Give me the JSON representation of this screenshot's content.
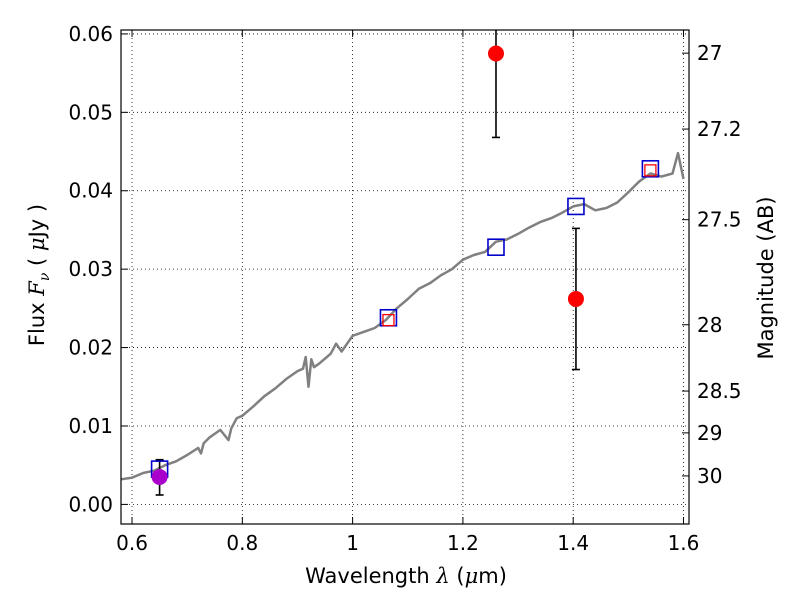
{
  "chart_data": {
    "type": "scatter",
    "xlabel": {
      "prefix": "Wavelength",
      "symbol": "λ",
      "unit_open": "(",
      "unit_mu": "μ",
      "unit_rest": "m)"
    },
    "ylabel": {
      "prefix": "Flux",
      "symbol": "F",
      "subscript": "ν",
      "unit_open": "(",
      "unit_mu": "μ",
      "unit_rest": "Jy",
      "unit_close": ")"
    },
    "y2label": "Magnitude (AB)",
    "xlim": [
      0.58,
      1.61
    ],
    "ylim": [
      -0.0025,
      0.0605
    ],
    "grid": true,
    "x_ticks": [
      {
        "value": 0.6,
        "label": "0.6"
      },
      {
        "value": 0.8,
        "label": "0.8"
      },
      {
        "value": 1.0,
        "label": "1"
      },
      {
        "value": 1.2,
        "label": "1.2"
      },
      {
        "value": 1.4,
        "label": "1.4"
      },
      {
        "value": 1.6,
        "label": "1.6"
      }
    ],
    "y_ticks": [
      {
        "value": 0.0,
        "label": "0.00"
      },
      {
        "value": 0.01,
        "label": "0.01"
      },
      {
        "value": 0.02,
        "label": "0.02"
      },
      {
        "value": 0.03,
        "label": "0.03"
      },
      {
        "value": 0.04,
        "label": "0.04"
      },
      {
        "value": 0.05,
        "label": "0.05"
      },
      {
        "value": 0.06,
        "label": "0.06"
      }
    ],
    "y2_ticks": [
      {
        "value": 27.0,
        "label": "27"
      },
      {
        "value": 27.2,
        "label": "27.2"
      },
      {
        "value": 27.5,
        "label": "27.5"
      },
      {
        "value": 28.0,
        "label": "28"
      },
      {
        "value": 28.5,
        "label": "28.5"
      },
      {
        "value": 29.0,
        "label": "29"
      },
      {
        "value": 30.0,
        "label": "30"
      }
    ],
    "model_spectrum": {
      "color": "#808080",
      "x": [
        0.58,
        0.6,
        0.62,
        0.64,
        0.66,
        0.68,
        0.7,
        0.72,
        0.725,
        0.73,
        0.74,
        0.76,
        0.775,
        0.78,
        0.79,
        0.8,
        0.82,
        0.84,
        0.86,
        0.88,
        0.9,
        0.91,
        0.915,
        0.92,
        0.925,
        0.93,
        0.94,
        0.96,
        0.97,
        0.98,
        1.0,
        1.02,
        1.04,
        1.06,
        1.08,
        1.1,
        1.12,
        1.14,
        1.16,
        1.18,
        1.2,
        1.22,
        1.24,
        1.26,
        1.28,
        1.3,
        1.32,
        1.34,
        1.36,
        1.38,
        1.4,
        1.42,
        1.44,
        1.46,
        1.48,
        1.5,
        1.52,
        1.54,
        1.56,
        1.58,
        1.59,
        1.6
      ],
      "y": [
        0.0032,
        0.0034,
        0.004,
        0.0043,
        0.005,
        0.0055,
        0.0063,
        0.0072,
        0.0065,
        0.0078,
        0.0085,
        0.0095,
        0.0082,
        0.0097,
        0.011,
        0.0113,
        0.0125,
        0.0138,
        0.0148,
        0.016,
        0.017,
        0.0173,
        0.0188,
        0.015,
        0.0185,
        0.0175,
        0.018,
        0.0192,
        0.0205,
        0.0195,
        0.0215,
        0.022,
        0.0225,
        0.0235,
        0.025,
        0.0262,
        0.0275,
        0.0282,
        0.0292,
        0.03,
        0.0312,
        0.0318,
        0.0322,
        0.0335,
        0.0338,
        0.0345,
        0.0353,
        0.036,
        0.0365,
        0.0372,
        0.038,
        0.0383,
        0.0375,
        0.0378,
        0.0385,
        0.0398,
        0.0412,
        0.0422,
        0.0418,
        0.0422,
        0.0448,
        0.0415
      ]
    },
    "series": [
      {
        "marker": "square",
        "color": "#0000cc",
        "x": [
          0.65,
          1.065,
          1.26,
          1.405,
          1.54
        ],
        "y": [
          0.0045,
          0.0238,
          0.0328,
          0.038,
          0.0428
        ]
      },
      {
        "marker": "small-square",
        "color": "#ff0000",
        "x": [
          1.065,
          1.54
        ],
        "y": [
          0.0235,
          0.0426
        ]
      },
      {
        "marker": "circle",
        "color": "#ff0000",
        "x": [
          1.26,
          1.405
        ],
        "y": [
          0.0575,
          0.0262
        ],
        "err_low": [
          0.0468,
          0.0172
        ],
        "err_high": [
          0.0605,
          0.0352
        ]
      },
      {
        "marker": "circle",
        "color": "#aa00cc",
        "x": [
          0.65
        ],
        "y": [
          0.0035
        ],
        "err_low": [
          0.0012
        ],
        "err_high": [
          0.0057
        ]
      }
    ]
  }
}
